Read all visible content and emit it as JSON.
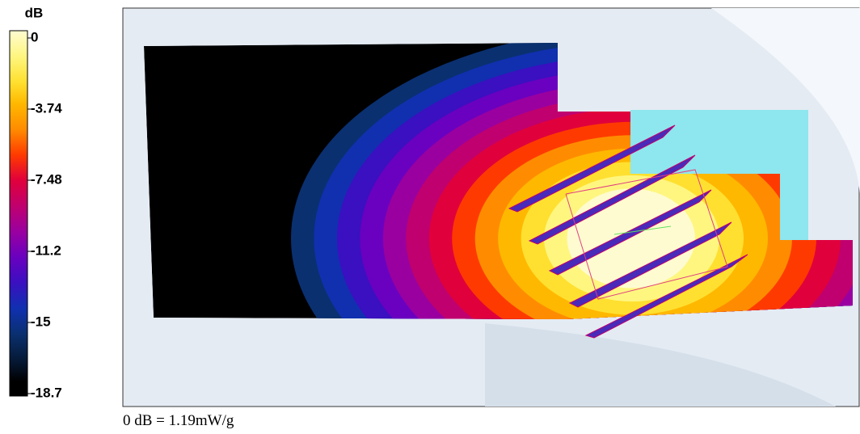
{
  "colorbar": {
    "unit": "dB",
    "ticks": [
      0,
      -3.74,
      -7.48,
      -11.2,
      -15,
      -18.7
    ]
  },
  "caption": "0 dB = 1.19mW/g"
}
